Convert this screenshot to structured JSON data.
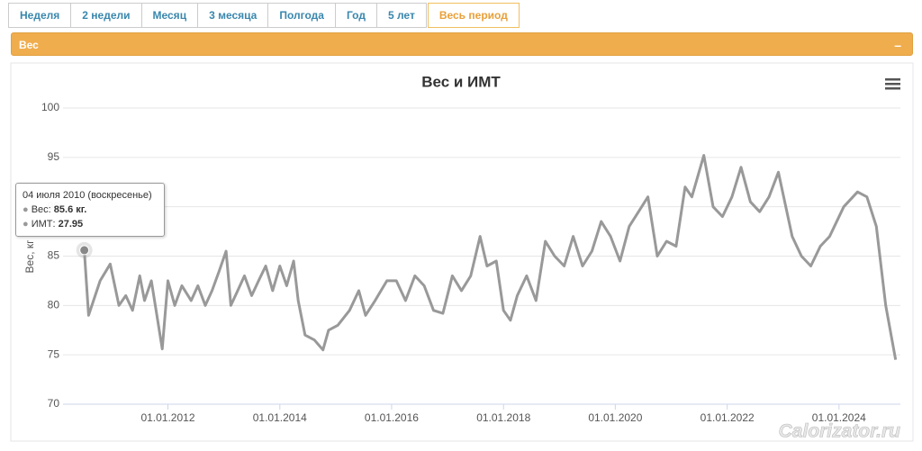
{
  "tabs": [
    "Неделя",
    "2 недели",
    "Месяц",
    "3 месяца",
    "Полгода",
    "Год",
    "5 лет",
    "Весь период"
  ],
  "panel": {
    "title": "Вес",
    "collapse": "–"
  },
  "watermark": "Calorizator.ru",
  "tooltip": {
    "date": "04 июля 2010 (воскресенье)",
    "weight_label": "Вес: ",
    "weight": "85.6 кг.",
    "bmi_label": "ИМТ: ",
    "bmi": "27.95"
  },
  "chart_data": {
    "type": "line",
    "title": "Вес и ИМТ",
    "y_label": "Вес, кг",
    "x": [
      "2010-07-04",
      "2010-08-01",
      "2010-10-15",
      "2010-12-20",
      "2011-02-15",
      "2011-04-01",
      "2011-05-15",
      "2011-07-01",
      "2011-08-01",
      "2011-09-15",
      "2011-11-25",
      "2012-01-01",
      "2012-02-15",
      "2012-04-01",
      "2012-06-01",
      "2012-07-15",
      "2012-09-01",
      "2012-10-15",
      "2012-12-01",
      "2013-01-15",
      "2013-02-15",
      "2013-04-01",
      "2013-05-15",
      "2013-07-01",
      "2013-08-15",
      "2013-10-01",
      "2013-11-15",
      "2014-01-01",
      "2014-02-15",
      "2014-04-01",
      "2014-05-01",
      "2014-06-15",
      "2014-08-15",
      "2014-10-10",
      "2014-11-15",
      "2015-01-15",
      "2015-04-01",
      "2015-06-01",
      "2015-07-15",
      "2015-09-15",
      "2015-12-01",
      "2016-02-01",
      "2016-04-01",
      "2016-06-01",
      "2016-08-01",
      "2016-10-01",
      "2016-12-01",
      "2017-02-01",
      "2017-04-01",
      "2017-06-01",
      "2017-08-01",
      "2017-09-15",
      "2017-11-15",
      "2018-01-01",
      "2018-02-15",
      "2018-04-01",
      "2018-06-01",
      "2018-08-01",
      "2018-10-01",
      "2018-12-01",
      "2019-02-01",
      "2019-04-01",
      "2019-06-01",
      "2019-08-01",
      "2019-10-01",
      "2019-12-01",
      "2020-02-01",
      "2020-04-01",
      "2020-06-01",
      "2020-08-01",
      "2020-10-01",
      "2020-12-01",
      "2021-02-01",
      "2021-04-01",
      "2021-05-15",
      "2021-08-01",
      "2021-10-01",
      "2021-12-01",
      "2022-02-01",
      "2022-04-01",
      "2022-06-01",
      "2022-08-01",
      "2022-10-01",
      "2022-12-01",
      "2023-03-01",
      "2023-05-01",
      "2023-07-01",
      "2023-09-01",
      "2023-11-01",
      "2024-02-01",
      "2024-05-01",
      "2024-07-01",
      "2024-09-01",
      "2024-11-01",
      "2025-01-05"
    ],
    "series": [
      {
        "name": "Вес",
        "color": "#999999",
        "values": [
          85.6,
          79.0,
          82.5,
          84.2,
          80.0,
          81.0,
          79.5,
          83.0,
          80.5,
          82.5,
          75.6,
          82.5,
          80.0,
          82.0,
          80.5,
          82.0,
          80.0,
          81.5,
          83.5,
          85.5,
          80.0,
          81.5,
          83.0,
          81.0,
          82.5,
          84.0,
          81.5,
          84.0,
          82.0,
          84.5,
          80.5,
          77.0,
          76.5,
          75.5,
          77.5,
          78.0,
          79.5,
          81.5,
          79.0,
          80.5,
          82.5,
          82.5,
          80.5,
          83.0,
          82.0,
          79.5,
          79.2,
          83.0,
          81.5,
          83.0,
          87.0,
          84.0,
          84.5,
          79.5,
          78.5,
          81.0,
          83.0,
          80.5,
          86.5,
          85.0,
          84.0,
          87.0,
          84.0,
          85.5,
          88.5,
          87.0,
          84.5,
          88.0,
          89.5,
          91.0,
          85.0,
          86.5,
          86.0,
          92.0,
          91.0,
          95.2,
          90.0,
          89.0,
          91.0,
          94.0,
          90.5,
          89.5,
          91.0,
          93.5,
          87.0,
          85.0,
          84.0,
          86.0,
          87.0,
          90.0,
          91.5,
          91.0,
          88.0,
          80.0,
          74.5
        ]
      }
    ],
    "xlim": [
      "2010-02-15",
      "2025-02-05"
    ],
    "xticks": [
      {
        "value": "2012-01-01",
        "label": "01.01.2012"
      },
      {
        "value": "2014-01-01",
        "label": "01.01.2014"
      },
      {
        "value": "2016-01-01",
        "label": "01.01.2016"
      },
      {
        "value": "2018-01-01",
        "label": "01.01.2018"
      },
      {
        "value": "2020-01-01",
        "label": "01.01.2020"
      },
      {
        "value": "2022-01-01",
        "label": "01.01.2022"
      },
      {
        "value": "2024-01-01",
        "label": "01.01.2024"
      }
    ],
    "ylim": [
      70,
      100
    ],
    "yticks": [
      70,
      75,
      80,
      85,
      90,
      95,
      100
    ],
    "grid": true
  }
}
